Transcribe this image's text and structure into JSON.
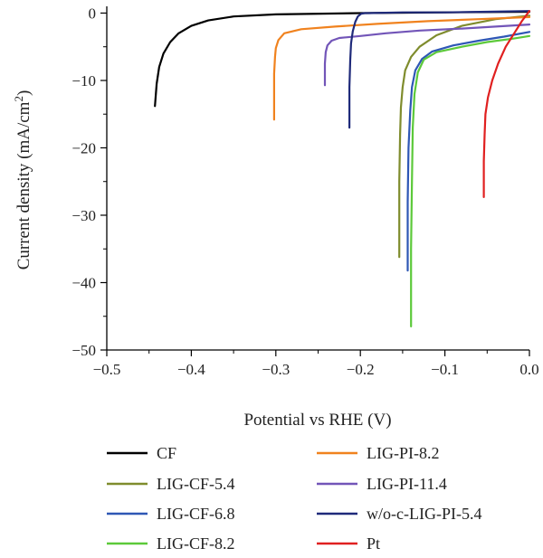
{
  "chart_data": {
    "type": "line",
    "xlabel": "Potential vs RHE (V)",
    "ylabel_main": "Current density (mA/cm",
    "ylabel_sup": "2",
    "ylabel_tail": ")",
    "xlim": [
      -0.5,
      0.0
    ],
    "ylim": [
      -50,
      1
    ],
    "x_ticks": [
      -0.5,
      -0.4,
      -0.3,
      -0.2,
      -0.1,
      0.0
    ],
    "x_tick_labels": [
      "−0.5",
      "−0.4",
      "−0.3",
      "−0.2",
      "−0.1",
      "0.0"
    ],
    "y_ticks": [
      0,
      -10,
      -20,
      -30,
      -40,
      -50
    ],
    "y_tick_labels": [
      "0",
      "−10",
      "−20",
      "−30",
      "−40",
      "−50"
    ],
    "grid": false,
    "legend_placement": "bottom",
    "series": [
      {
        "name": "CF",
        "color": "#000000",
        "x": [
          -0.443,
          -0.441,
          -0.438,
          -0.433,
          -0.425,
          -0.415,
          -0.4,
          -0.38,
          -0.35,
          -0.3,
          -0.2,
          -0.1,
          0.0
        ],
        "y": [
          -13.8,
          -10.5,
          -8.0,
          -6.0,
          -4.3,
          -3.0,
          -1.9,
          -1.1,
          -0.5,
          -0.2,
          0.0,
          0.1,
          0.2
        ]
      },
      {
        "name": "LIG-CF-5.4",
        "color": "#7f8c2d",
        "x": [
          -0.154,
          -0.154,
          -0.153,
          -0.152,
          -0.15,
          -0.147,
          -0.14,
          -0.13,
          -0.11,
          -0.08,
          -0.04,
          0.0
        ],
        "y": [
          -36.2,
          -25.0,
          -18.0,
          -14.0,
          -11.0,
          -8.5,
          -6.5,
          -5.0,
          -3.3,
          -1.9,
          -0.9,
          -0.4
        ]
      },
      {
        "name": "LIG-CF-6.8",
        "color": "#2e57b5",
        "x": [
          -0.144,
          -0.144,
          -0.143,
          -0.141,
          -0.139,
          -0.135,
          -0.127,
          -0.115,
          -0.09,
          -0.06,
          -0.03,
          0.0
        ],
        "y": [
          -38.2,
          -28.0,
          -20.0,
          -14.5,
          -11.0,
          -8.5,
          -6.8,
          -5.7,
          -4.8,
          -4.1,
          -3.5,
          -2.8
        ]
      },
      {
        "name": "LIG-CF-8.2",
        "color": "#5cc93a",
        "x": [
          -0.14,
          -0.14,
          -0.139,
          -0.138,
          -0.136,
          -0.132,
          -0.125,
          -0.11,
          -0.08,
          -0.05,
          -0.02,
          0.0
        ],
        "y": [
          -46.5,
          -35.0,
          -25.0,
          -17.0,
          -12.0,
          -8.8,
          -6.9,
          -5.8,
          -5.0,
          -4.3,
          -3.8,
          -3.4
        ]
      },
      {
        "name": "LIG-PI-8.2",
        "color": "#f0821e",
        "x": [
          -0.302,
          -0.302,
          -0.301,
          -0.3,
          -0.297,
          -0.29,
          -0.27,
          -0.23,
          -0.18,
          -0.12,
          -0.06,
          0.0
        ],
        "y": [
          -15.8,
          -9.0,
          -6.5,
          -5.2,
          -4.0,
          -3.0,
          -2.4,
          -2.0,
          -1.6,
          -1.2,
          -0.9,
          -0.6
        ]
      },
      {
        "name": "LIG-PI-11.4",
        "color": "#7255b8",
        "x": [
          -0.242,
          -0.242,
          -0.241,
          -0.239,
          -0.234,
          -0.225,
          -0.2,
          -0.17,
          -0.13,
          -0.08,
          -0.04,
          0.0
        ],
        "y": [
          -10.7,
          -7.5,
          -5.8,
          -4.8,
          -4.1,
          -3.7,
          -3.4,
          -3.0,
          -2.6,
          -2.3,
          -2.0,
          -1.7
        ]
      },
      {
        "name": "w/o-c-LIG-PI-5.4",
        "color": "#1f2a7a",
        "x": [
          -0.213,
          -0.213,
          -0.212,
          -0.211,
          -0.209,
          -0.206,
          -0.203,
          -0.199,
          -0.195,
          -0.19,
          -0.15,
          -0.1,
          -0.05,
          0.0
        ],
        "y": [
          -17.0,
          -11.0,
          -7.0,
          -4.5,
          -2.7,
          -1.3,
          -0.5,
          -0.1,
          0.0,
          0.0,
          0.1,
          0.1,
          0.2,
          0.3
        ]
      },
      {
        "name": "Pt",
        "color": "#e02020",
        "x": [
          -0.054,
          -0.054,
          -0.053,
          -0.052,
          -0.049,
          -0.044,
          -0.037,
          -0.028,
          -0.018,
          -0.009,
          -0.003,
          0.0
        ],
        "y": [
          -27.3,
          -22.0,
          -18.0,
          -15.0,
          -12.5,
          -10.0,
          -7.5,
          -5.0,
          -3.0,
          -1.2,
          -0.2,
          0.3
        ]
      }
    ]
  }
}
